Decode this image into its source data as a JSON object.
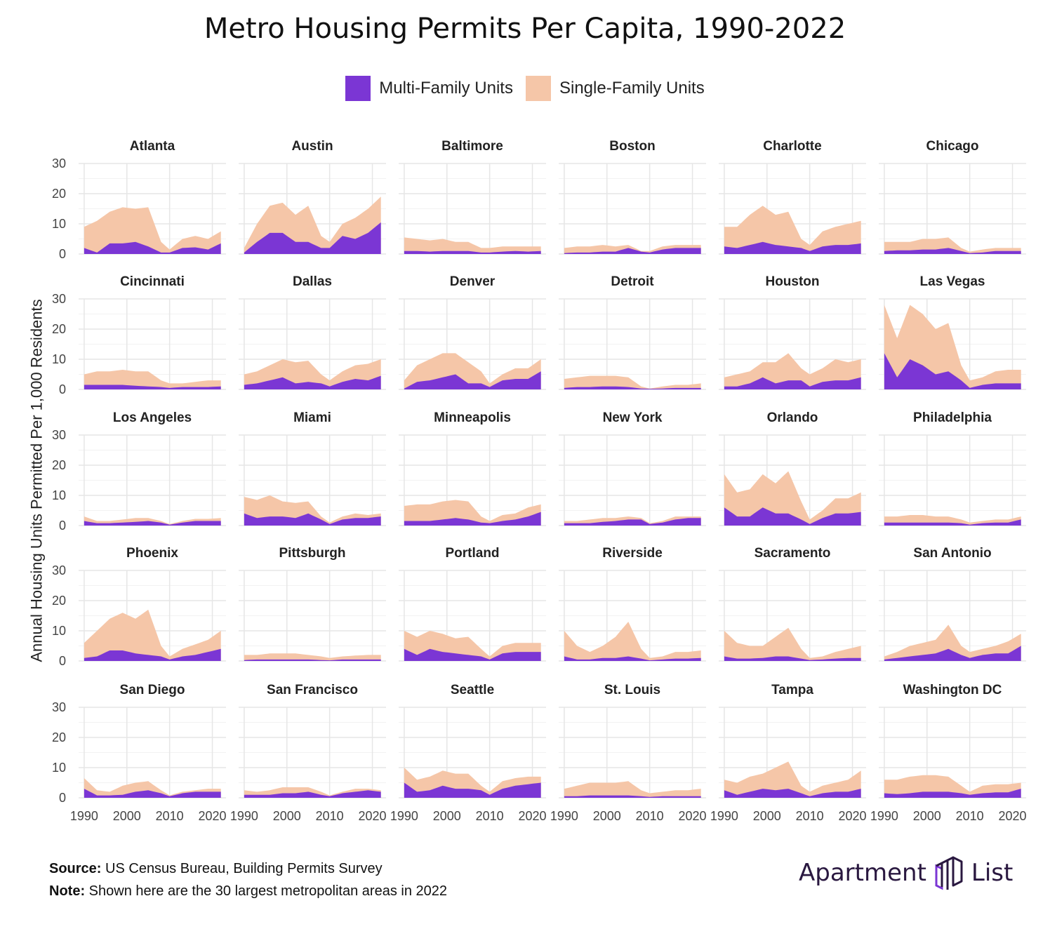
{
  "title": "Metro Housing Permits Per Capita, 1990-2022",
  "legend": [
    {
      "label": "Multi-Family Units",
      "color": "#7b36d4"
    },
    {
      "label": "Single-Family Units",
      "color": "#f5c6a8"
    }
  ],
  "footer": {
    "source_label": "Source:",
    "source_text": "US Census Bureau, Building Permits Survey",
    "note_label": "Note:",
    "note_text": "Shown here are the 30 largest metropolitan areas in 2022"
  },
  "logo": {
    "left": "Apartment",
    "right": "List"
  },
  "chart_data": {
    "type": "area",
    "stacked": true,
    "ylabel": "Annual Housing Units Permitted Per 1,000 Residents",
    "xlabel": "",
    "ylim": [
      0,
      30
    ],
    "yticks": [
      0,
      10,
      20,
      30
    ],
    "xticks": [
      1990,
      2000,
      2010,
      2020
    ],
    "grid": true,
    "legend_position": "top",
    "series_names": [
      "Multi-Family Units",
      "Single-Family Units"
    ],
    "key_years": [
      1990,
      1993,
      1996,
      1999,
      2002,
      2005,
      2008,
      2010,
      2013,
      2016,
      2019,
      2022
    ],
    "panels": [
      {
        "name": "Atlanta",
        "multi": [
          2,
          0.5,
          3.5,
          3.5,
          4,
          2.5,
          0.5,
          0.5,
          2,
          2.2,
          1.5,
          3.5
        ],
        "total": [
          9,
          11,
          14,
          15.5,
          15,
          15.5,
          4,
          1.5,
          5,
          6,
          5,
          7.5
        ]
      },
      {
        "name": "Austin",
        "multi": [
          0.5,
          4,
          7,
          7,
          4,
          4,
          2,
          2,
          6,
          5,
          7,
          10.5
        ],
        "total": [
          2,
          10,
          16,
          17,
          13,
          16,
          6,
          4,
          10,
          12,
          15,
          19
        ]
      },
      {
        "name": "Baltimore",
        "multi": [
          1,
          1,
          0.8,
          1,
          1,
          1,
          0.5,
          0.5,
          0.8,
          1,
          0.8,
          1
        ],
        "total": [
          5.5,
          5,
          4.5,
          5,
          4,
          4,
          2,
          2,
          2.5,
          2.5,
          2.5,
          2.5
        ]
      },
      {
        "name": "Boston",
        "multi": [
          0.3,
          0.5,
          0.5,
          0.8,
          0.8,
          2,
          0.8,
          0.5,
          1.5,
          2,
          2,
          2
        ],
        "total": [
          2,
          2.5,
          2.5,
          3,
          2.5,
          3,
          1,
          1,
          2.5,
          3,
          3,
          3
        ]
      },
      {
        "name": "Charlotte",
        "multi": [
          2.5,
          2,
          3,
          4,
          3,
          2.5,
          2,
          1,
          2.5,
          3,
          3,
          3.5
        ],
        "total": [
          9,
          9,
          13,
          16,
          13,
          14,
          5,
          3,
          7.5,
          9,
          10,
          11
        ]
      },
      {
        "name": "Chicago",
        "multi": [
          1,
          1.2,
          1.2,
          1.5,
          1.5,
          2,
          1,
          0.3,
          0.5,
          1,
          1,
          1
        ],
        "total": [
          4,
          4,
          4,
          5,
          5,
          5.5,
          2,
          0.8,
          1.5,
          2,
          2,
          2
        ]
      },
      {
        "name": "Cincinnati",
        "multi": [
          1.5,
          1.5,
          1.5,
          1.5,
          1.2,
          1,
          0.8,
          0.5,
          0.8,
          0.8,
          0.8,
          1
        ],
        "total": [
          5,
          6,
          6,
          6.5,
          6,
          6,
          3,
          2,
          2,
          2.5,
          3,
          3
        ]
      },
      {
        "name": "Dallas",
        "multi": [
          1.5,
          2,
          3,
          4,
          2,
          2.5,
          2,
          1,
          2.5,
          3.5,
          3,
          4.5
        ],
        "total": [
          5,
          6,
          8,
          10,
          9,
          9.5,
          5,
          3,
          6,
          8,
          8.5,
          10
        ]
      },
      {
        "name": "Denver",
        "multi": [
          0.3,
          2.5,
          3,
          4,
          5,
          2,
          2,
          0.8,
          3,
          3.5,
          3.5,
          6
        ],
        "total": [
          3,
          8,
          10,
          12,
          12,
          9,
          6,
          2,
          5,
          7,
          7,
          10
        ]
      },
      {
        "name": "Detroit",
        "multi": [
          0.5,
          0.8,
          0.8,
          1,
          1,
          0.8,
          0.3,
          0.2,
          0.3,
          0.5,
          0.5,
          0.5
        ],
        "total": [
          3.5,
          4,
          4.5,
          4.5,
          4.5,
          4,
          1,
          0.3,
          1,
          1.5,
          1.5,
          2
        ]
      },
      {
        "name": "Houston",
        "multi": [
          1,
          1,
          2,
          4,
          2,
          3,
          3,
          1,
          2.5,
          3,
          3,
          4
        ],
        "total": [
          4,
          5,
          6,
          9,
          9,
          12,
          7,
          5,
          7,
          10,
          9,
          10
        ]
      },
      {
        "name": "Las Vegas",
        "multi": [
          12,
          4,
          10,
          8,
          5,
          6,
          3,
          0.5,
          1.5,
          2,
          2,
          2
        ],
        "total": [
          28,
          17,
          28,
          25,
          20,
          22,
          8,
          3,
          4,
          6,
          6.5,
          6.5
        ]
      },
      {
        "name": "Los Angeles",
        "multi": [
          1.5,
          0.8,
          0.8,
          1,
          1.2,
          1.5,
          1,
          0.3,
          1,
          1.5,
          1.5,
          1.5
        ],
        "total": [
          3,
          1.5,
          1.5,
          2,
          2.5,
          2.5,
          1.5,
          0.5,
          1.5,
          2.2,
          2.2,
          2.5
        ]
      },
      {
        "name": "Miami",
        "multi": [
          4,
          2.5,
          3,
          3,
          2.5,
          4,
          2,
          0.5,
          2,
          2.5,
          2.5,
          3
        ],
        "total": [
          9.5,
          8.5,
          10,
          8,
          7.5,
          8,
          3,
          1,
          3,
          4,
          3.5,
          4
        ]
      },
      {
        "name": "Minneapolis",
        "multi": [
          1.5,
          1.5,
          1.5,
          2,
          2.5,
          2,
          1,
          0.8,
          1.5,
          2,
          3,
          4.5
        ],
        "total": [
          6.5,
          7,
          7,
          8,
          8.5,
          8,
          3,
          1.5,
          3.5,
          4,
          6,
          7
        ]
      },
      {
        "name": "New York",
        "multi": [
          0.8,
          0.8,
          0.8,
          1.2,
          1.5,
          2,
          2,
          0.5,
          1,
          2,
          2.5,
          2.5
        ],
        "total": [
          1.5,
          1.5,
          2,
          2.5,
          2.5,
          3,
          2.5,
          0.8,
          1.5,
          3,
          3,
          3
        ]
      },
      {
        "name": "Orlando",
        "multi": [
          6,
          3,
          3,
          6,
          4,
          4,
          2,
          0.5,
          2.5,
          4,
          4,
          4.5
        ],
        "total": [
          17,
          11,
          12,
          17,
          14,
          18,
          8,
          2,
          5,
          9,
          9,
          11
        ]
      },
      {
        "name": "Philadelphia",
        "multi": [
          1,
          1,
          1,
          1,
          1,
          1,
          0.8,
          0.3,
          0.8,
          1,
          1,
          2
        ],
        "total": [
          3,
          3,
          3.5,
          3.5,
          3,
          3,
          2,
          1,
          1.5,
          2,
          2,
          3
        ]
      },
      {
        "name": "Phoenix",
        "multi": [
          1,
          1.5,
          3.5,
          3.5,
          2.5,
          2,
          1.5,
          0.5,
          1.5,
          2,
          3,
          4
        ],
        "total": [
          6,
          10,
          14,
          16,
          14,
          17,
          5,
          1.5,
          4,
          5.5,
          7,
          10
        ]
      },
      {
        "name": "Pittsburgh",
        "multi": [
          0.3,
          0.5,
          0.5,
          0.5,
          0.5,
          0.5,
          0.3,
          0.2,
          0.5,
          0.5,
          0.5,
          0.5
        ],
        "total": [
          2,
          2,
          2.5,
          2.5,
          2.5,
          2,
          1.5,
          1,
          1.5,
          1.8,
          2,
          2
        ]
      },
      {
        "name": "Portland",
        "multi": [
          4,
          2,
          4,
          3,
          2.5,
          2,
          1.5,
          0.5,
          2.5,
          3,
          3,
          3
        ],
        "total": [
          10,
          8,
          10,
          9,
          7.5,
          8,
          4,
          1.5,
          5,
          6,
          6,
          6
        ]
      },
      {
        "name": "Riverside",
        "multi": [
          1.5,
          0.5,
          0.5,
          1,
          1,
          1.5,
          0.8,
          0.2,
          0.5,
          0.8,
          0.8,
          1
        ],
        "total": [
          10,
          5,
          3,
          5,
          8,
          13,
          4,
          1,
          1.5,
          3,
          3,
          3.5
        ]
      },
      {
        "name": "Sacramento",
        "multi": [
          1.5,
          0.8,
          0.8,
          1,
          1.5,
          1.5,
          0.8,
          0.3,
          0.5,
          0.8,
          1,
          1
        ],
        "total": [
          10,
          6,
          5,
          5,
          8,
          11,
          4,
          1,
          1.5,
          3,
          4,
          5
        ]
      },
      {
        "name": "San Antonio",
        "multi": [
          0.5,
          1,
          1.5,
          2,
          2.5,
          4,
          2,
          1,
          2,
          2.5,
          2.5,
          5
        ],
        "total": [
          1.5,
          3,
          5,
          6,
          7,
          12,
          5,
          3,
          4,
          5,
          6.5,
          9
        ]
      },
      {
        "name": "San Diego",
        "multi": [
          3,
          0.8,
          0.8,
          1,
          2,
          2.5,
          1.5,
          0.5,
          1.5,
          2,
          2,
          2
        ],
        "total": [
          6.5,
          2.5,
          2,
          4,
          5,
          5.5,
          2.5,
          0.8,
          2,
          2.5,
          3,
          3
        ]
      },
      {
        "name": "San Francisco",
        "multi": [
          1,
          1,
          1,
          1.5,
          1.5,
          2,
          1,
          0.5,
          1.5,
          2,
          2.5,
          2
        ],
        "total": [
          2.5,
          2,
          2.5,
          3.5,
          3.5,
          3.5,
          2,
          0.8,
          2,
          3,
          3,
          2.5
        ]
      },
      {
        "name": "Seattle",
        "multi": [
          5,
          2,
          2.5,
          4,
          3,
          3,
          2.5,
          1,
          3,
          4,
          4.5,
          5
        ],
        "total": [
          10,
          6,
          7,
          9,
          8,
          8,
          4,
          2,
          5.5,
          6.5,
          7,
          7
        ]
      },
      {
        "name": "St. Louis",
        "multi": [
          0.5,
          0.5,
          0.8,
          0.8,
          0.8,
          0.8,
          0.5,
          0.3,
          0.5,
          0.5,
          0.5,
          0.5
        ],
        "total": [
          3,
          4,
          5,
          5,
          5,
          5.5,
          2.5,
          1.5,
          2,
          2.5,
          2.5,
          3
        ]
      },
      {
        "name": "Tampa",
        "multi": [
          2.5,
          1,
          2,
          3,
          2.5,
          3,
          1.5,
          0.5,
          1.5,
          2,
          2,
          3
        ],
        "total": [
          6,
          5,
          7,
          8,
          10,
          12,
          4,
          2,
          4,
          5,
          6,
          9
        ]
      },
      {
        "name": "Washington DC",
        "multi": [
          1.5,
          1.2,
          1.5,
          2,
          2,
          2,
          1.5,
          1,
          1.5,
          1.8,
          1.8,
          3
        ],
        "total": [
          6,
          6,
          7,
          7.5,
          7.5,
          7,
          4,
          2,
          4,
          4.5,
          4.5,
          5
        ]
      }
    ]
  }
}
